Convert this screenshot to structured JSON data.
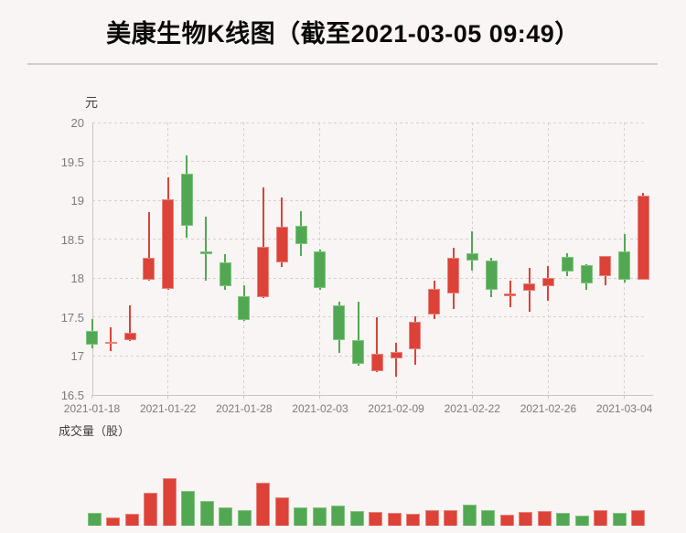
{
  "title": "美康生物K线图（截至2021-03-05 09:49）",
  "price_panel": {
    "unit_label": "元"
  },
  "volume_panel": {
    "label": "成交量（股）"
  },
  "chart_data": {
    "type": "candlestick",
    "title": "美康生物K线图（截至2021-03-05 09:49）",
    "ylabel": "元",
    "volume_label": "成交量（股）",
    "ylim": [
      16.5,
      20
    ],
    "grid": true,
    "legend_position": "none",
    "y_ticks": [
      20,
      19.5,
      19,
      18.5,
      18,
      17.5,
      17,
      16.5
    ],
    "x_tick_labels": [
      "2021-01-18",
      "2021-01-22",
      "2021-01-28",
      "2021-02-03",
      "2021-02-09",
      "2021-02-22",
      "2021-02-26",
      "2021-03-04"
    ],
    "x_tick_indices": [
      0,
      4,
      8,
      12,
      16,
      20,
      24,
      28
    ],
    "up_color": "#dc4238",
    "down_color": "#52a852",
    "up_border": "#e8837b",
    "down_border": "#7fc47f",
    "candles": [
      {
        "date": "2021-01-18",
        "open": 17.32,
        "close": 17.14,
        "high": 17.47,
        "low": 17.09,
        "volume_rel": 14
      },
      {
        "date": "2021-01-19",
        "open": 17.15,
        "close": 17.18,
        "high": 17.36,
        "low": 17.06,
        "volume_rel": 9
      },
      {
        "date": "2021-01-20",
        "open": 17.2,
        "close": 17.3,
        "high": 17.65,
        "low": 17.19,
        "volume_rel": 13
      },
      {
        "date": "2021-01-21",
        "open": 17.98,
        "close": 18.26,
        "high": 18.85,
        "low": 17.97,
        "volume_rel": 36
      },
      {
        "date": "2021-01-22",
        "open": 17.86,
        "close": 19.01,
        "high": 19.3,
        "low": 17.85,
        "volume_rel": 52
      },
      {
        "date": "2021-01-25",
        "open": 19.34,
        "close": 18.67,
        "high": 19.58,
        "low": 18.52,
        "volume_rel": 38
      },
      {
        "date": "2021-01-26",
        "open": 18.34,
        "close": 18.3,
        "high": 18.79,
        "low": 17.97,
        "volume_rel": 27
      },
      {
        "date": "2021-01-27",
        "open": 18.2,
        "close": 17.9,
        "high": 18.31,
        "low": 17.85,
        "volume_rel": 20
      },
      {
        "date": "2021-01-28",
        "open": 17.76,
        "close": 17.46,
        "high": 17.91,
        "low": 17.45,
        "volume_rel": 17
      },
      {
        "date": "2021-01-29",
        "open": 17.75,
        "close": 18.4,
        "high": 19.17,
        "low": 17.74,
        "volume_rel": 47
      },
      {
        "date": "2021-02-01",
        "open": 18.2,
        "close": 18.66,
        "high": 19.03,
        "low": 18.14,
        "volume_rel": 31
      },
      {
        "date": "2021-02-02",
        "open": 18.67,
        "close": 18.43,
        "high": 18.86,
        "low": 18.28,
        "volume_rel": 20
      },
      {
        "date": "2021-02-03",
        "open": 18.34,
        "close": 17.87,
        "high": 18.37,
        "low": 17.85,
        "volume_rel": 20
      },
      {
        "date": "2021-02-04",
        "open": 17.65,
        "close": 17.2,
        "high": 17.69,
        "low": 17.03,
        "volume_rel": 22
      },
      {
        "date": "2021-02-05",
        "open": 17.2,
        "close": 16.9,
        "high": 17.7,
        "low": 16.87,
        "volume_rel": 16
      },
      {
        "date": "2021-02-08",
        "open": 16.8,
        "close": 17.02,
        "high": 17.49,
        "low": 16.79,
        "volume_rel": 15
      },
      {
        "date": "2021-02-09",
        "open": 16.97,
        "close": 17.05,
        "high": 17.16,
        "low": 16.73,
        "volume_rel": 14
      },
      {
        "date": "2021-02-10",
        "open": 17.08,
        "close": 17.43,
        "high": 17.51,
        "low": 16.88,
        "volume_rel": 13
      },
      {
        "date": "2021-02-18",
        "open": 17.53,
        "close": 17.86,
        "high": 17.97,
        "low": 17.47,
        "volume_rel": 17
      },
      {
        "date": "2021-02-19",
        "open": 17.8,
        "close": 18.26,
        "high": 18.39,
        "low": 17.6,
        "volume_rel": 17
      },
      {
        "date": "2021-02-22",
        "open": 18.32,
        "close": 18.22,
        "high": 18.6,
        "low": 18.1,
        "volume_rel": 23
      },
      {
        "date": "2021-02-23",
        "open": 18.22,
        "close": 17.85,
        "high": 18.26,
        "low": 17.75,
        "volume_rel": 17
      },
      {
        "date": "2021-02-24",
        "open": 17.78,
        "close": 17.8,
        "high": 17.97,
        "low": 17.62,
        "volume_rel": 12
      },
      {
        "date": "2021-02-25",
        "open": 17.84,
        "close": 17.93,
        "high": 18.13,
        "low": 17.56,
        "volume_rel": 15
      },
      {
        "date": "2021-02-26",
        "open": 17.9,
        "close": 18.0,
        "high": 18.15,
        "low": 17.71,
        "volume_rel": 16
      },
      {
        "date": "2021-03-01",
        "open": 18.27,
        "close": 18.08,
        "high": 18.32,
        "low": 18.02,
        "volume_rel": 14
      },
      {
        "date": "2021-03-02",
        "open": 18.16,
        "close": 17.93,
        "high": 18.18,
        "low": 17.85,
        "volume_rel": 11
      },
      {
        "date": "2021-03-03",
        "open": 18.02,
        "close": 18.28,
        "high": 18.28,
        "low": 17.9,
        "volume_rel": 17
      },
      {
        "date": "2021-03-04",
        "open": 18.34,
        "close": 17.98,
        "high": 18.57,
        "low": 17.94,
        "volume_rel": 14
      },
      {
        "date": "2021-03-05",
        "open": 17.98,
        "close": 19.06,
        "high": 19.1,
        "low": 17.98,
        "volume_rel": 17
      }
    ]
  }
}
